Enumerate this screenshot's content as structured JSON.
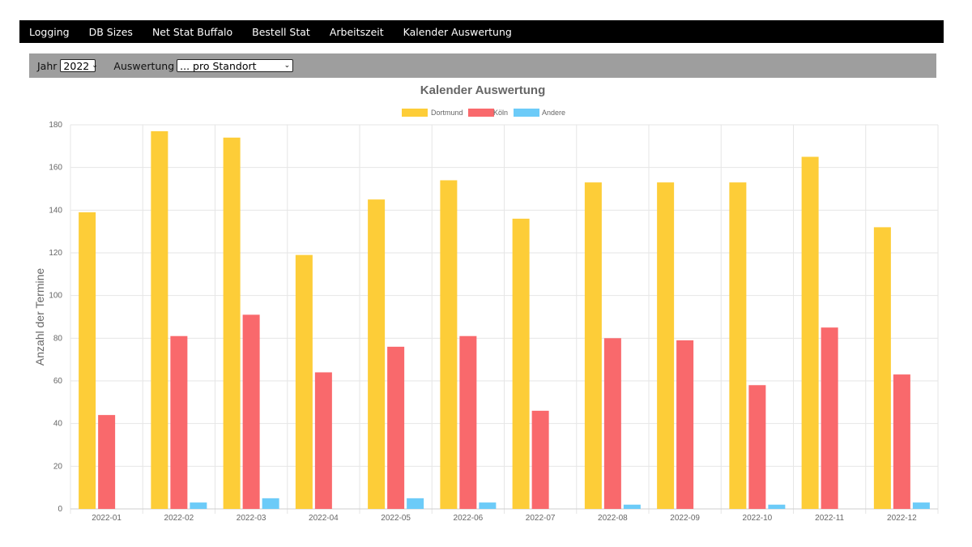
{
  "nav": {
    "items": [
      "Logging",
      "DB Sizes",
      "Net Stat Buffalo",
      "Bestell Stat",
      "Arbeitszeit",
      "Kalender Auswertung"
    ]
  },
  "filter": {
    "year_label": "Jahr",
    "year_value": "2022",
    "auswertung_label": "Auswertung",
    "auswertung_value": "... pro Standort"
  },
  "colors": {
    "dortmund": "#fdcd38",
    "koeln": "#f9696c",
    "andere": "#6ccbf8",
    "nav_bg": "#000000",
    "filter_bg": "#9e9e9e"
  },
  "chart_data": {
    "type": "bar",
    "title": "Kalender Auswertung",
    "ylabel": "Anzahl der Termine",
    "xlabel": "",
    "ylim": [
      0,
      180
    ],
    "yticks": [
      0,
      20,
      40,
      60,
      80,
      100,
      120,
      140,
      160,
      180
    ],
    "grid": true,
    "legend_position": "top",
    "categories": [
      "2022-01",
      "2022-02",
      "2022-03",
      "2022-04",
      "2022-05",
      "2022-06",
      "2022-07",
      "2022-08",
      "2022-09",
      "2022-10",
      "2022-11",
      "2022-12"
    ],
    "series": [
      {
        "name": "Dortmund",
        "color": "#fdcd38",
        "values": [
          139,
          177,
          174,
          119,
          145,
          154,
          136,
          153,
          153,
          153,
          165,
          132
        ]
      },
      {
        "name": "Köln",
        "color": "#f9696c",
        "values": [
          44,
          81,
          91,
          64,
          76,
          81,
          46,
          80,
          79,
          58,
          85,
          63
        ]
      },
      {
        "name": "Andere",
        "color": "#6ccbf8",
        "values": [
          0,
          3,
          5,
          0,
          5,
          3,
          0,
          2,
          0,
          2,
          0,
          3
        ]
      }
    ]
  }
}
